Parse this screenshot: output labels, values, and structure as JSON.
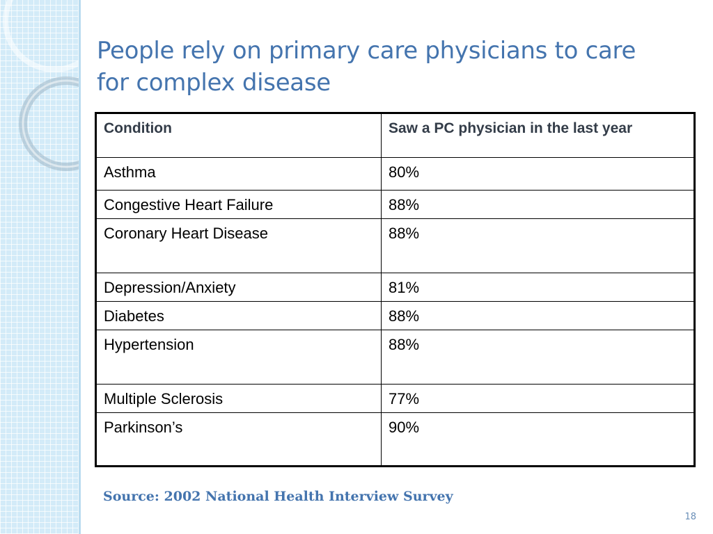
{
  "slide": {
    "title": "People rely on primary care physicians to care for complex disease",
    "source": "Source: 2002 National Health Interview Survey",
    "page_number": "18"
  },
  "table": {
    "headers": [
      "Condition",
      "Saw a PC physician in the last year"
    ],
    "rows": [
      [
        "Asthma",
        "80%"
      ],
      [
        "Congestive Heart Failure",
        "88%"
      ],
      [
        "Coronary Heart Disease",
        "88%"
      ],
      [
        "Depression/Anxiety",
        "81%"
      ],
      [
        "Diabetes",
        "88%"
      ],
      [
        "Hypertension",
        "88%"
      ],
      [
        "Multiple Sclerosis",
        "77%"
      ],
      [
        "Parkinson’s",
        "90%"
      ]
    ]
  },
  "colors": {
    "title": "#4474ae",
    "header_text": "#333c48",
    "sidebar": "#d3ebf8"
  }
}
